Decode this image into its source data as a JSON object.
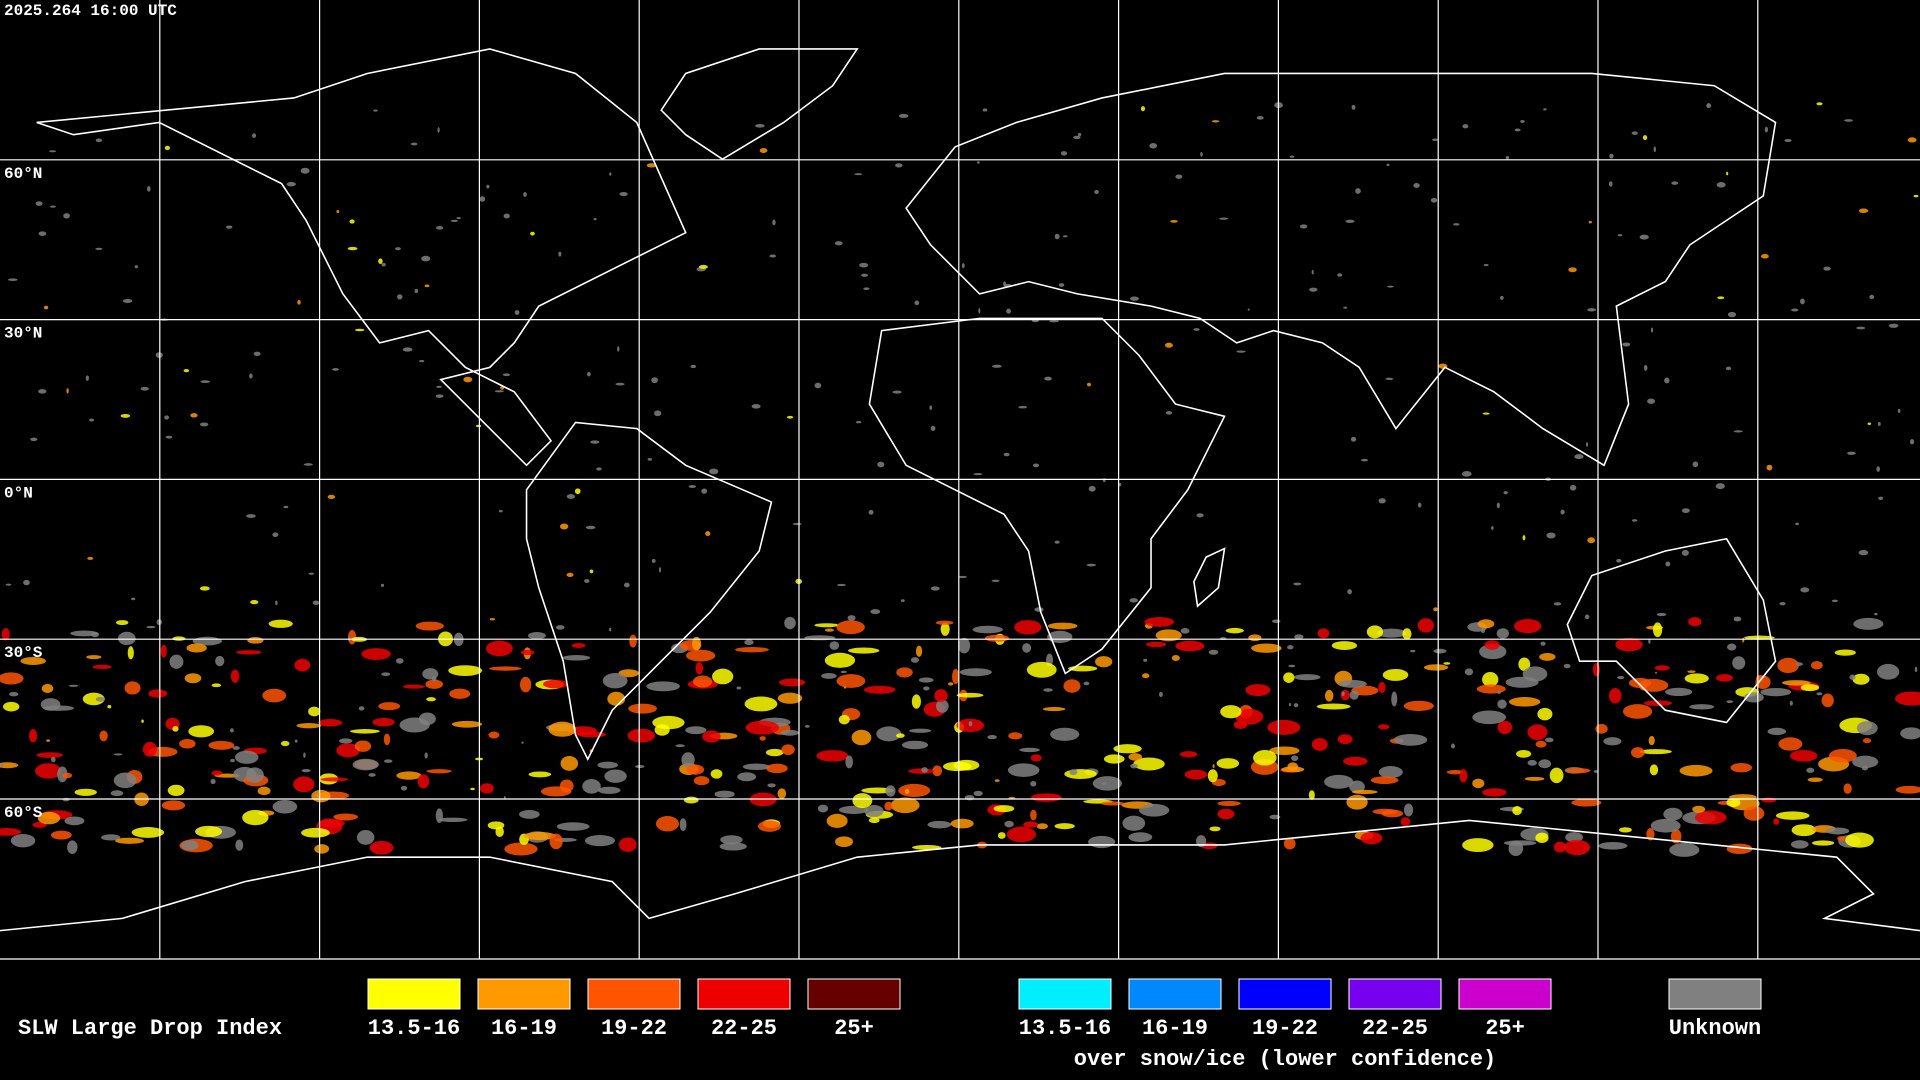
{
  "timestamp": "2025.264 16:00 UTC",
  "latitude_labels": [
    "60°N",
    "30°N",
    "0°N",
    "30°S",
    "60°S"
  ],
  "legend": {
    "title": "SLW Large Drop Index",
    "groups": [
      {
        "items": [
          {
            "label": "13.5-16",
            "color": "#ffff00"
          },
          {
            "label": "16-19",
            "color": "#ff9900"
          },
          {
            "label": "19-22",
            "color": "#ff5500"
          },
          {
            "label": "22-25",
            "color": "#ee0000"
          },
          {
            "label": "25+",
            "color": "#660000"
          }
        ]
      },
      {
        "items": [
          {
            "label": "13.5-16",
            "color": "#00eeff"
          },
          {
            "label": "16-19",
            "color": "#0088ff"
          },
          {
            "label": "19-22",
            "color": "#0000ff"
          },
          {
            "label": "22-25",
            "color": "#7700ee"
          },
          {
            "label": "25+",
            "color": "#cc00cc"
          }
        ],
        "note": "over snow/ice (lower confidence)"
      },
      {
        "items": [
          {
            "label": "Unknown",
            "color": "#808080"
          }
        ]
      }
    ]
  }
}
